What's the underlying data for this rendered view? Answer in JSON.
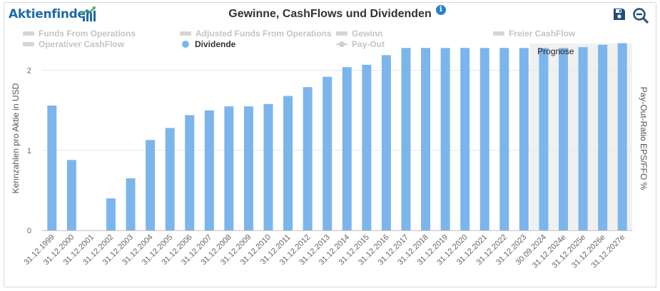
{
  "header": {
    "logo_text": "Aktienfinder",
    "title": "Gewinne, CashFlows und Dividenden",
    "info_icon": "info-icon",
    "save_icon": "save-icon",
    "zoom_icon": "zoom-out-icon"
  },
  "legend": [
    {
      "label": "Funds From Operations",
      "active": false,
      "symbol": "bar"
    },
    {
      "label": "Adjusted Funds From Operations",
      "active": false,
      "symbol": "bar"
    },
    {
      "label": "Gewinn",
      "active": false,
      "symbol": "bar"
    },
    {
      "label": "Freier CashFlow",
      "active": false,
      "symbol": "bar"
    },
    {
      "label": "Operativer CashFlow",
      "active": false,
      "symbol": "bar"
    },
    {
      "label": "Dividende",
      "active": true,
      "symbol": "dot"
    },
    {
      "label": "Pay-Out",
      "active": false,
      "symbol": "line"
    }
  ],
  "chart_data": {
    "type": "bar",
    "title": "Gewinne, CashFlows und Dividenden",
    "ylabel": "Kennzahlen pro Aktie in USD",
    "ylabel_right": "Pay-Out-Ratio EPS/FFO %",
    "ylim": [
      0,
      2.3
    ],
    "yticks": [
      0,
      1,
      2
    ],
    "grid": true,
    "forecast_label": "Prognose",
    "forecast_start_index": 25,
    "categories": [
      "31.12.1999",
      "31.12.2000",
      "31.12.2001",
      "31.12.2002",
      "31.12.2003",
      "31.12.2004",
      "31.12.2005",
      "31.12.2006",
      "31.12.2007",
      "31.12.2008",
      "31.12.2009",
      "31.12.2010",
      "31.12.2011",
      "31.12.2012",
      "31.12.2013",
      "31.12.2014",
      "31.12.2015",
      "31.12.2016",
      "31.12.2017",
      "31.12.2018",
      "31.12.2019",
      "31.12.2020",
      "31.12.2021",
      "31.12.2022",
      "31.12.2023",
      "30.09.2024",
      "31.12.2024e",
      "31.12.2025e",
      "31.12.2026e",
      "31.12.2027e"
    ],
    "series": [
      {
        "name": "Dividende",
        "color": "#7cb5ec",
        "values": [
          1.56,
          0.88,
          0,
          0.4,
          0.65,
          1.13,
          1.28,
          1.44,
          1.5,
          1.55,
          1.55,
          1.58,
          1.68,
          1.79,
          1.92,
          2.04,
          2.07,
          2.19,
          2.28,
          2.28,
          2.28,
          2.28,
          2.28,
          2.28,
          2.28,
          2.28,
          2.28,
          2.29,
          2.32,
          2.34
        ]
      }
    ]
  }
}
